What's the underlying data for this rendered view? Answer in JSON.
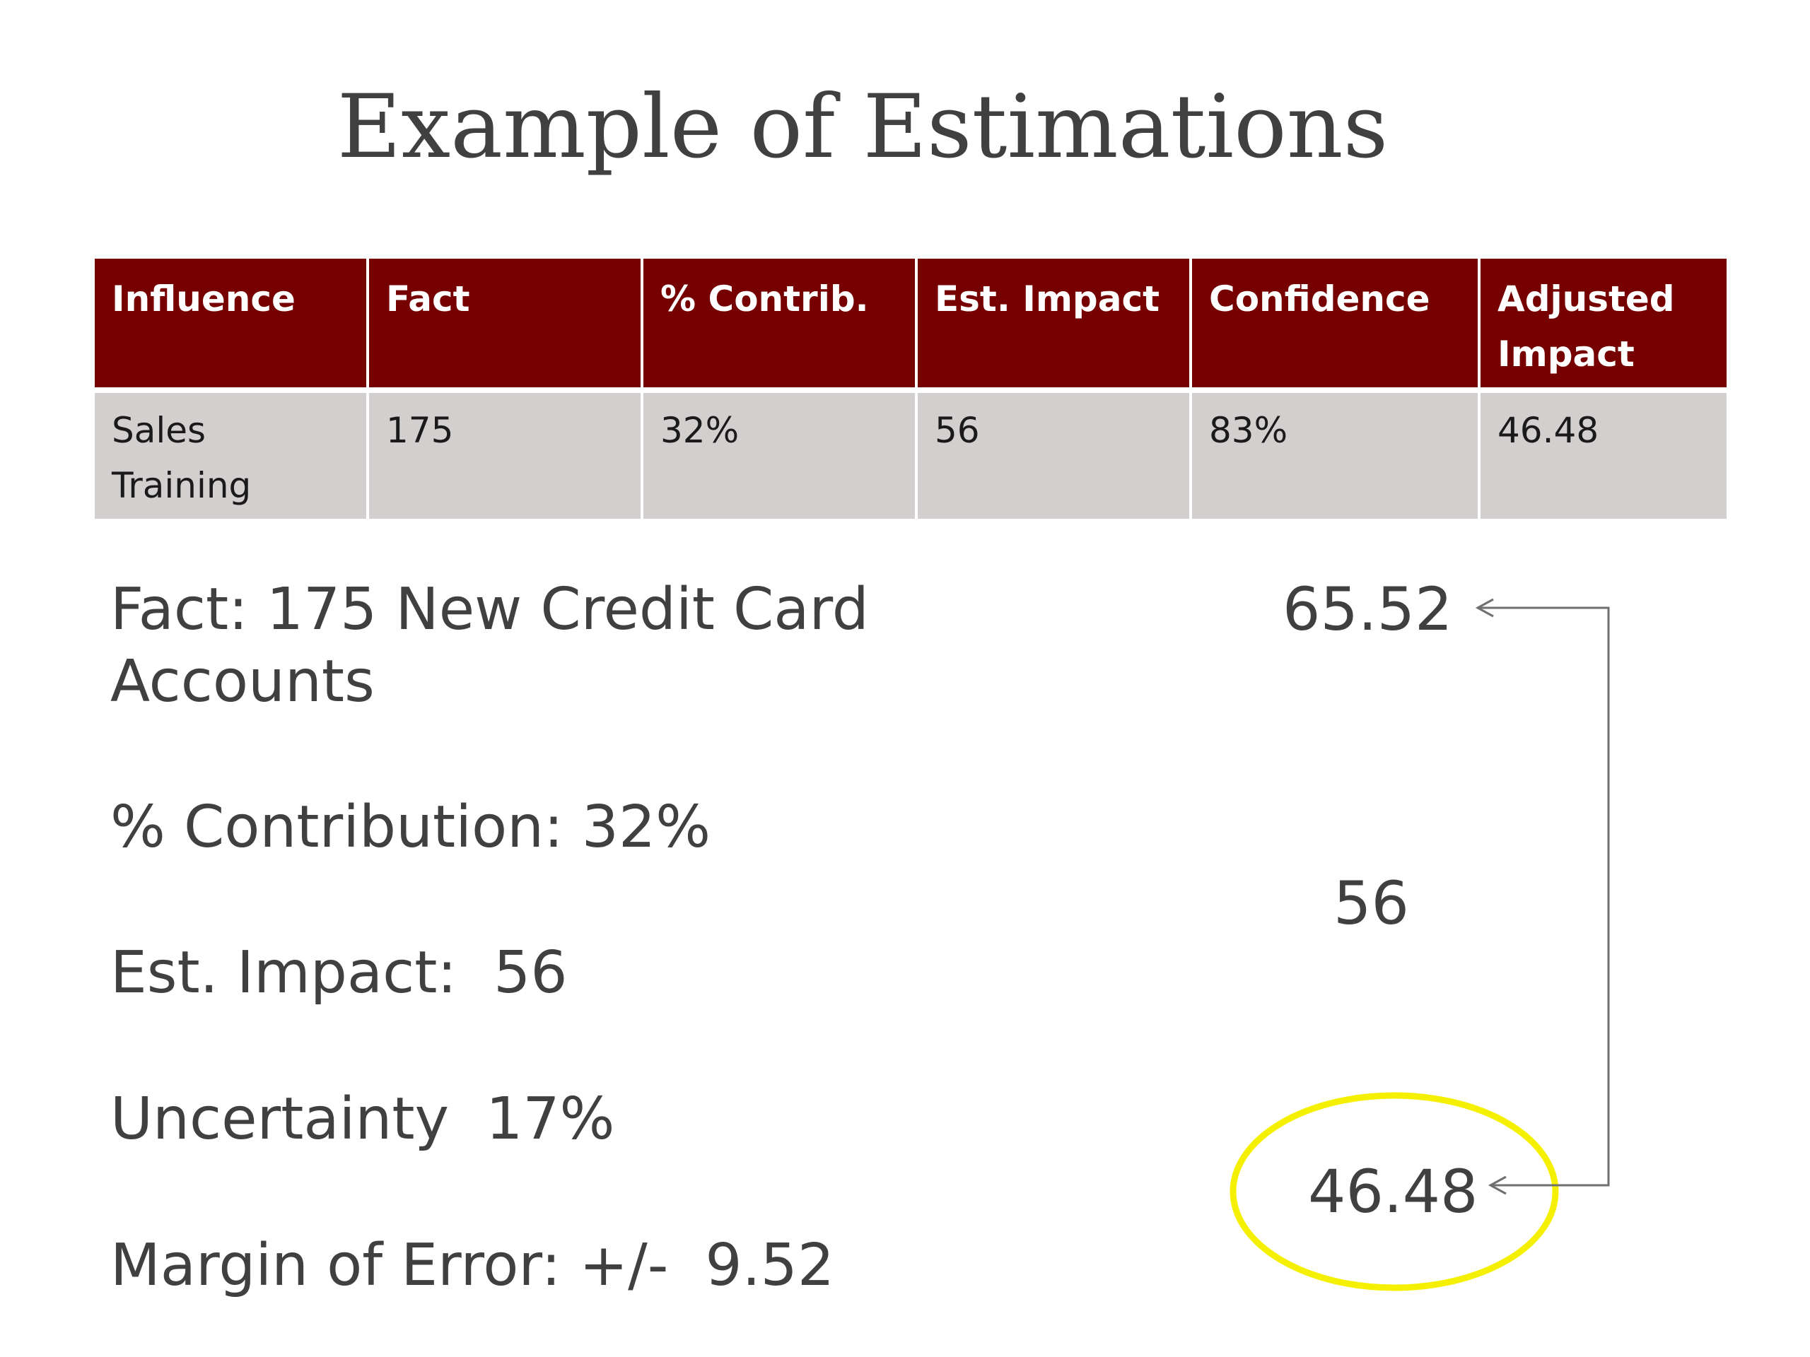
{
  "title": "Example of Estimations",
  "table": {
    "headers": [
      "Influence",
      "Fact",
      "% Contrib.",
      "Est.  Impact",
      "Confidence",
      "Adjusted Impact"
    ],
    "rows": [
      [
        "Sales Training",
        "175",
        "32%",
        "56",
        "83%",
        "46.48"
      ]
    ]
  },
  "details": {
    "fact": "Fact:  175 New Credit Card Accounts",
    "contribution": "% Contribution: 32%",
    "impact": "Est. Impact:  56",
    "uncertainty": "Uncertainty  17%",
    "margin": "Margin of Error: +/-  9.52"
  },
  "range": {
    "high": "65.52",
    "mid": "56",
    "low": "46.48"
  },
  "colors": {
    "header_bg": "#760000",
    "row_bg": "#d3cfcf",
    "highlight": "#f5f000"
  }
}
